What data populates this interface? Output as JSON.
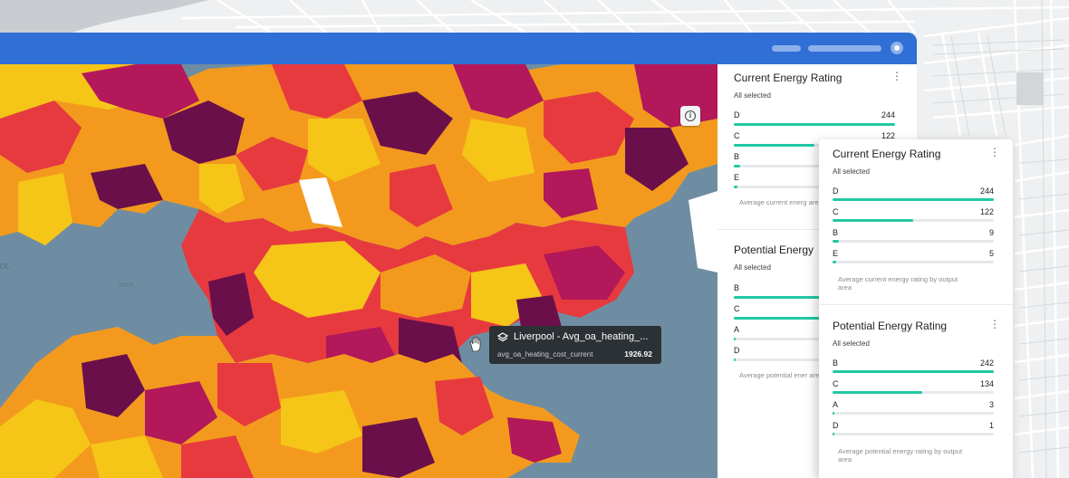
{
  "colors": {
    "bar_fill": "#21c8a3",
    "topbar": "#2f6fd6",
    "map_water": "#6f8da2",
    "choropleth": [
      "#f5c518",
      "#f39a1e",
      "#e73a3f",
      "#b2185a",
      "#6b0f4a"
    ]
  },
  "map": {
    "place_labels": [
      "OL",
      "DOCK"
    ],
    "tooltip": {
      "icon": "layers-icon",
      "title": "Liverpool - Avg_oa_heating_...",
      "key": "avg_oa_heating_cost_current",
      "value": "1926.92"
    }
  },
  "widgets_back": [
    {
      "title": "Current Energy Rating",
      "subtitle": "All selected",
      "items": [
        {
          "label": "D",
          "value": "244",
          "fraction": 1.0
        },
        {
          "label": "C",
          "value": "122",
          "fraction": 0.5
        },
        {
          "label": "B",
          "value": "",
          "fraction": 0.037
        },
        {
          "label": "E",
          "value": "",
          "fraction": 0.02
        }
      ],
      "note": "Average current energ area"
    },
    {
      "title": "Potential Energy",
      "subtitle": "All selected",
      "items": [
        {
          "label": "B",
          "value": "",
          "fraction": 1.0
        },
        {
          "label": "C",
          "value": "",
          "fraction": 0.55
        },
        {
          "label": "A",
          "value": "",
          "fraction": 0.012
        },
        {
          "label": "D",
          "value": "",
          "fraction": 0.004
        }
      ],
      "note": "Average potential ener area"
    }
  ],
  "widgets_front": [
    {
      "title": "Current Energy Rating",
      "subtitle": "All selected",
      "items": [
        {
          "label": "D",
          "value": "244",
          "fraction": 1.0
        },
        {
          "label": "C",
          "value": "122",
          "fraction": 0.5
        },
        {
          "label": "B",
          "value": "9",
          "fraction": 0.037
        },
        {
          "label": "E",
          "value": "5",
          "fraction": 0.02
        }
      ],
      "note_line1": "Average current energy rating by output",
      "note_line2": "area"
    },
    {
      "title": "Potential Energy Rating",
      "subtitle": "All selected",
      "items": [
        {
          "label": "B",
          "value": "242",
          "fraction": 1.0
        },
        {
          "label": "C",
          "value": "134",
          "fraction": 0.554
        },
        {
          "label": "A",
          "value": "3",
          "fraction": 0.012
        },
        {
          "label": "D",
          "value": "1",
          "fraction": 0.004
        }
      ],
      "note_line1": "Average potential energy rating by output",
      "note_line2": "area"
    }
  ]
}
